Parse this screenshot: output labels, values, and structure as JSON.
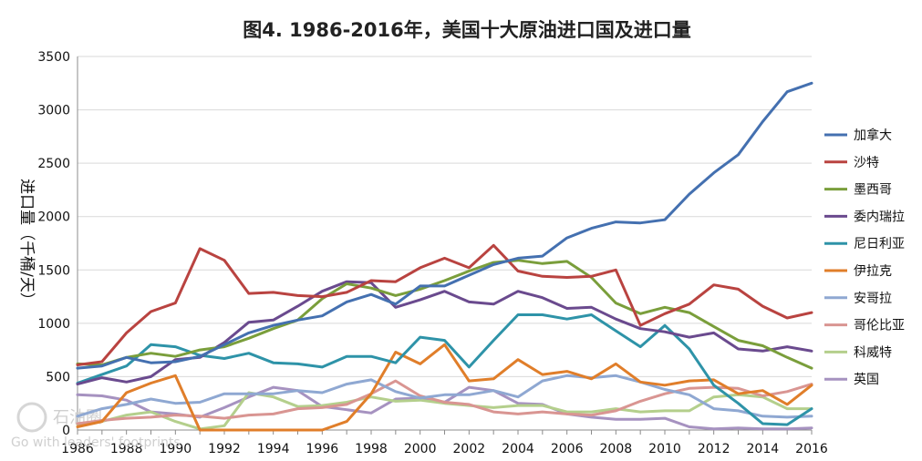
{
  "watermark": {
    "brand": "石油圈",
    "tagline": "Go with leaders' footprints"
  },
  "chart_data": {
    "type": "line",
    "title": "图4. 1986-2016年，美国十大原油进口国及进口量",
    "xlabel": "",
    "ylabel": "进口量（千桶/天）",
    "x": [
      1986,
      1987,
      1988,
      1989,
      1990,
      1991,
      1992,
      1993,
      1994,
      1995,
      1996,
      1997,
      1998,
      1999,
      2000,
      2001,
      2002,
      2003,
      2004,
      2005,
      2006,
      2007,
      2008,
      2009,
      2010,
      2011,
      2012,
      2013,
      2014,
      2015,
      2016
    ],
    "x_ticks": [
      "1986",
      "1988",
      "1990",
      "1992",
      "1994",
      "1996",
      "1998",
      "2000",
      "2002",
      "2004",
      "2006",
      "2008",
      "2010",
      "2012",
      "2014",
      "2016"
    ],
    "y_ticks": [
      "0",
      "500",
      "1000",
      "1500",
      "2000",
      "2500",
      "3000",
      "3500"
    ],
    "ylim": [
      0,
      3500
    ],
    "grid": "horizontal",
    "legend_position": "right",
    "series": [
      {
        "name": "加拿大",
        "color": "#4470b0",
        "values": [
          580,
          600,
          680,
          630,
          640,
          690,
          800,
          910,
          980,
          1030,
          1070,
          1200,
          1270,
          1180,
          1350,
          1350,
          1450,
          1550,
          1610,
          1630,
          1800,
          1890,
          1950,
          1940,
          1970,
          2210,
          2410,
          2580,
          2890,
          3170,
          3250
        ]
      },
      {
        "name": "沙特",
        "color": "#b94340",
        "values": [
          610,
          640,
          910,
          1110,
          1190,
          1700,
          1590,
          1280,
          1290,
          1260,
          1250,
          1290,
          1400,
          1390,
          1520,
          1610,
          1520,
          1730,
          1490,
          1440,
          1430,
          1440,
          1500,
          980,
          1090,
          1180,
          1360,
          1320,
          1160,
          1050,
          1100
        ]
      },
      {
        "name": "墨西哥",
        "color": "#7a9e3b",
        "values": [
          620,
          610,
          680,
          720,
          690,
          750,
          780,
          860,
          950,
          1030,
          1230,
          1370,
          1330,
          1260,
          1320,
          1400,
          1490,
          1570,
          1590,
          1560,
          1580,
          1430,
          1190,
          1090,
          1150,
          1100,
          970,
          840,
          790,
          680,
          580
        ]
      },
      {
        "name": "委内瑞拉",
        "color": "#6a4a8e",
        "values": [
          430,
          490,
          450,
          500,
          660,
          680,
          820,
          1010,
          1030,
          1160,
          1300,
          1390,
          1380,
          1150,
          1220,
          1300,
          1200,
          1180,
          1300,
          1240,
          1140,
          1150,
          1040,
          950,
          920,
          870,
          910,
          760,
          740,
          780,
          740
        ]
      },
      {
        "name": "尼日利亚",
        "color": "#2e93a8",
        "values": [
          440,
          520,
          600,
          800,
          780,
          700,
          670,
          720,
          630,
          620,
          590,
          690,
          690,
          630,
          870,
          840,
          590,
          840,
          1080,
          1080,
          1040,
          1080,
          930,
          780,
          980,
          760,
          420,
          250,
          60,
          50,
          200
        ]
      },
      {
        "name": "伊拉克",
        "color": "#e07e2a",
        "values": [
          30,
          80,
          350,
          440,
          510,
          0,
          0,
          0,
          0,
          0,
          0,
          80,
          340,
          730,
          620,
          800,
          460,
          480,
          660,
          520,
          550,
          480,
          620,
          450,
          420,
          460,
          470,
          340,
          370,
          240,
          420
        ]
      },
      {
        "name": "安哥拉",
        "color": "#8fa8d2",
        "values": [
          130,
          200,
          240,
          290,
          250,
          260,
          340,
          340,
          340,
          370,
          350,
          430,
          470,
          360,
          300,
          330,
          330,
          370,
          310,
          460,
          510,
          490,
          510,
          450,
          380,
          330,
          200,
          180,
          130,
          120,
          130
        ]
      },
      {
        "name": "哥伦比亚",
        "color": "#d99592",
        "values": [
          60,
          90,
          110,
          120,
          140,
          130,
          110,
          140,
          150,
          200,
          210,
          240,
          340,
          460,
          320,
          260,
          240,
          170,
          150,
          170,
          150,
          140,
          180,
          270,
          340,
          390,
          400,
          390,
          320,
          360,
          430
        ]
      },
      {
        "name": "科威特",
        "color": "#b4cf8c",
        "values": [
          50,
          80,
          140,
          170,
          80,
          10,
          40,
          350,
          310,
          220,
          230,
          260,
          310,
          270,
          280,
          250,
          230,
          210,
          230,
          230,
          170,
          170,
          200,
          170,
          180,
          180,
          310,
          330,
          310,
          200,
          200
        ]
      },
      {
        "name": "英国",
        "color": "#a692c0",
        "values": [
          330,
          320,
          280,
          170,
          150,
          120,
          210,
          310,
          400,
          370,
          220,
          190,
          160,
          290,
          300,
          260,
          400,
          370,
          250,
          240,
          150,
          120,
          100,
          100,
          110,
          30,
          10,
          20,
          10,
          10,
          20
        ]
      }
    ]
  }
}
